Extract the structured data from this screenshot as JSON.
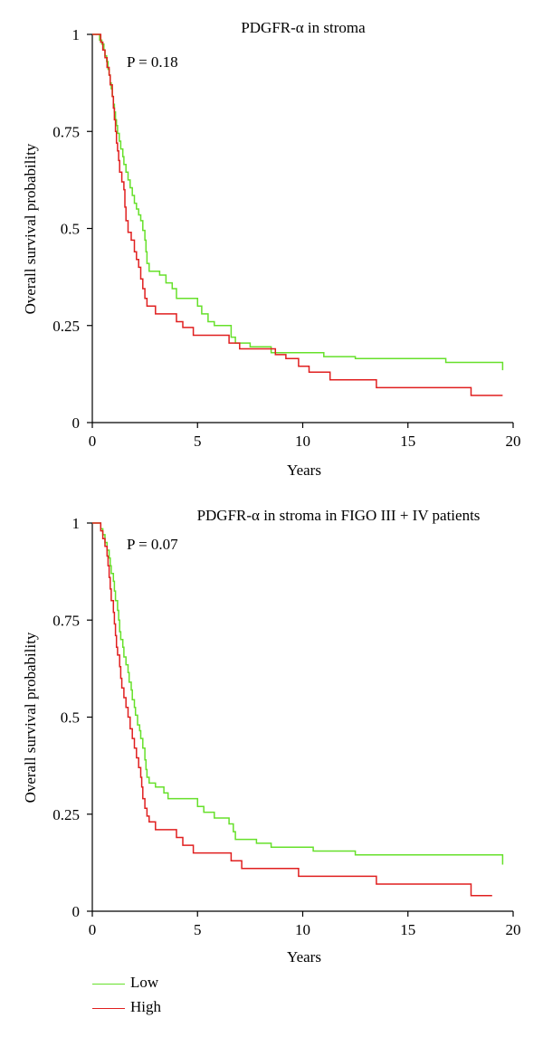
{
  "chart_data": [
    {
      "type": "line",
      "title": "PDGFR-α in stroma",
      "p_value": "P = 0.18",
      "xlabel": "Years",
      "ylabel": "Overall survival probability",
      "xlim": [
        0,
        20
      ],
      "ylim": [
        0,
        1
      ],
      "xticks": [
        "0",
        "5",
        "10",
        "15",
        "20"
      ],
      "yticks": [
        "0",
        "0.25",
        "0.5",
        "0.75",
        "1"
      ],
      "series": [
        {
          "name": "Low",
          "color": "#66e02a",
          "points": [
            [
              0,
              1
            ],
            [
              0.3,
              1
            ],
            [
              0.35,
              0.985
            ],
            [
              0.45,
              0.975
            ],
            [
              0.55,
              0.96
            ],
            [
              0.6,
              0.945
            ],
            [
              0.68,
              0.93
            ],
            [
              0.75,
              0.91
            ],
            [
              0.8,
              0.895
            ],
            [
              0.85,
              0.875
            ],
            [
              0.9,
              0.86
            ],
            [
              0.95,
              0.84
            ],
            [
              1.0,
              0.82
            ],
            [
              1.05,
              0.8
            ],
            [
              1.1,
              0.78
            ],
            [
              1.15,
              0.765
            ],
            [
              1.2,
              0.745
            ],
            [
              1.28,
              0.725
            ],
            [
              1.35,
              0.705
            ],
            [
              1.45,
              0.685
            ],
            [
              1.5,
              0.665
            ],
            [
              1.6,
              0.645
            ],
            [
              1.7,
              0.625
            ],
            [
              1.8,
              0.605
            ],
            [
              1.9,
              0.585
            ],
            [
              2.0,
              0.565
            ],
            [
              2.1,
              0.55
            ],
            [
              2.2,
              0.535
            ],
            [
              2.3,
              0.52
            ],
            [
              2.4,
              0.495
            ],
            [
              2.5,
              0.47
            ],
            [
              2.55,
              0.44
            ],
            [
              2.6,
              0.41
            ],
            [
              2.7,
              0.39
            ],
            [
              3.2,
              0.38
            ],
            [
              3.5,
              0.36
            ],
            [
              3.8,
              0.345
            ],
            [
              4.0,
              0.32
            ],
            [
              5.0,
              0.3
            ],
            [
              5.2,
              0.28
            ],
            [
              5.5,
              0.26
            ],
            [
              5.8,
              0.25
            ],
            [
              6.6,
              0.22
            ],
            [
              6.8,
              0.205
            ],
            [
              7.5,
              0.195
            ],
            [
              8.5,
              0.18
            ],
            [
              11,
              0.17
            ],
            [
              12.5,
              0.165
            ],
            [
              16.8,
              0.155
            ],
            [
              19.5,
              0.135
            ]
          ]
        },
        {
          "name": "High",
          "color": "#e01f1f",
          "points": [
            [
              0,
              1
            ],
            [
              0.35,
              1
            ],
            [
              0.4,
              0.98
            ],
            [
              0.5,
              0.96
            ],
            [
              0.6,
              0.94
            ],
            [
              0.7,
              0.915
            ],
            [
              0.8,
              0.895
            ],
            [
              0.85,
              0.87
            ],
            [
              0.95,
              0.84
            ],
            [
              1.0,
              0.81
            ],
            [
              1.05,
              0.78
            ],
            [
              1.1,
              0.75
            ],
            [
              1.15,
              0.72
            ],
            [
              1.2,
              0.7
            ],
            [
              1.25,
              0.675
            ],
            [
              1.3,
              0.645
            ],
            [
              1.4,
              0.62
            ],
            [
              1.5,
              0.6
            ],
            [
              1.55,
              0.555
            ],
            [
              1.6,
              0.52
            ],
            [
              1.7,
              0.49
            ],
            [
              1.85,
              0.47
            ],
            [
              2.0,
              0.44
            ],
            [
              2.1,
              0.42
            ],
            [
              2.2,
              0.4
            ],
            [
              2.3,
              0.37
            ],
            [
              2.4,
              0.345
            ],
            [
              2.5,
              0.32
            ],
            [
              2.6,
              0.3
            ],
            [
              3.0,
              0.28
            ],
            [
              4.0,
              0.26
            ],
            [
              4.3,
              0.245
            ],
            [
              4.8,
              0.225
            ],
            [
              6.5,
              0.205
            ],
            [
              7.0,
              0.19
            ],
            [
              8.7,
              0.175
            ],
            [
              9.2,
              0.165
            ],
            [
              9.8,
              0.145
            ],
            [
              10.3,
              0.13
            ],
            [
              11.3,
              0.11
            ],
            [
              13.5,
              0.09
            ],
            [
              18.0,
              0.07
            ],
            [
              19.5,
              0.07
            ]
          ]
        }
      ]
    },
    {
      "type": "line",
      "title": "PDGFR-α in stroma in FIGO III + IV patients",
      "p_value": "P = 0.07",
      "xlabel": "Years",
      "ylabel": "Overall survival probability",
      "xlim": [
        0,
        20
      ],
      "ylim": [
        0,
        1
      ],
      "xticks": [
        "0",
        "5",
        "10",
        "15",
        "20"
      ],
      "yticks": [
        "0",
        "0.25",
        "0.5",
        "0.75",
        "1"
      ],
      "series": [
        {
          "name": "Low",
          "color": "#66e02a",
          "points": [
            [
              0,
              1
            ],
            [
              0.35,
              1
            ],
            [
              0.4,
              0.985
            ],
            [
              0.5,
              0.97
            ],
            [
              0.6,
              0.95
            ],
            [
              0.7,
              0.93
            ],
            [
              0.8,
              0.91
            ],
            [
              0.85,
              0.89
            ],
            [
              0.9,
              0.87
            ],
            [
              1.0,
              0.85
            ],
            [
              1.05,
              0.825
            ],
            [
              1.1,
              0.8
            ],
            [
              1.2,
              0.775
            ],
            [
              1.25,
              0.75
            ],
            [
              1.3,
              0.72
            ],
            [
              1.35,
              0.7
            ],
            [
              1.45,
              0.68
            ],
            [
              1.5,
              0.655
            ],
            [
              1.6,
              0.635
            ],
            [
              1.7,
              0.615
            ],
            [
              1.75,
              0.59
            ],
            [
              1.85,
              0.57
            ],
            [
              1.9,
              0.545
            ],
            [
              2.0,
              0.525
            ],
            [
              2.05,
              0.505
            ],
            [
              2.15,
              0.48
            ],
            [
              2.25,
              0.465
            ],
            [
              2.3,
              0.445
            ],
            [
              2.4,
              0.42
            ],
            [
              2.5,
              0.39
            ],
            [
              2.55,
              0.365
            ],
            [
              2.6,
              0.345
            ],
            [
              2.7,
              0.33
            ],
            [
              3.0,
              0.32
            ],
            [
              3.4,
              0.305
            ],
            [
              3.6,
              0.29
            ],
            [
              5.0,
              0.27
            ],
            [
              5.3,
              0.255
            ],
            [
              5.8,
              0.24
            ],
            [
              6.5,
              0.225
            ],
            [
              6.7,
              0.205
            ],
            [
              6.8,
              0.185
            ],
            [
              7.8,
              0.175
            ],
            [
              8.5,
              0.165
            ],
            [
              10.5,
              0.155
            ],
            [
              12.5,
              0.145
            ],
            [
              19.5,
              0.12
            ]
          ]
        },
        {
          "name": "High",
          "color": "#e01f1f",
          "points": [
            [
              0,
              1
            ],
            [
              0.35,
              1
            ],
            [
              0.4,
              0.98
            ],
            [
              0.5,
              0.96
            ],
            [
              0.6,
              0.94
            ],
            [
              0.7,
              0.915
            ],
            [
              0.75,
              0.89
            ],
            [
              0.8,
              0.86
            ],
            [
              0.85,
              0.83
            ],
            [
              0.9,
              0.8
            ],
            [
              1.0,
              0.77
            ],
            [
              1.05,
              0.74
            ],
            [
              1.1,
              0.71
            ],
            [
              1.15,
              0.68
            ],
            [
              1.2,
              0.66
            ],
            [
              1.3,
              0.63
            ],
            [
              1.35,
              0.6
            ],
            [
              1.4,
              0.575
            ],
            [
              1.5,
              0.55
            ],
            [
              1.6,
              0.525
            ],
            [
              1.7,
              0.5
            ],
            [
              1.8,
              0.47
            ],
            [
              1.9,
              0.445
            ],
            [
              2.0,
              0.42
            ],
            [
              2.1,
              0.395
            ],
            [
              2.2,
              0.37
            ],
            [
              2.3,
              0.345
            ],
            [
              2.35,
              0.32
            ],
            [
              2.4,
              0.29
            ],
            [
              2.5,
              0.265
            ],
            [
              2.6,
              0.245
            ],
            [
              2.7,
              0.23
            ],
            [
              3.0,
              0.21
            ],
            [
              4.0,
              0.19
            ],
            [
              4.3,
              0.17
            ],
            [
              4.8,
              0.15
            ],
            [
              6.6,
              0.13
            ],
            [
              7.1,
              0.11
            ],
            [
              9.8,
              0.09
            ],
            [
              13.5,
              0.07
            ],
            [
              18.0,
              0.04
            ],
            [
              19.0,
              0.04
            ]
          ]
        }
      ]
    }
  ],
  "legend": {
    "items": [
      {
        "label": "Low",
        "color": "#66e02a"
      },
      {
        "label": "High",
        "color": "#e01f1f"
      }
    ]
  }
}
